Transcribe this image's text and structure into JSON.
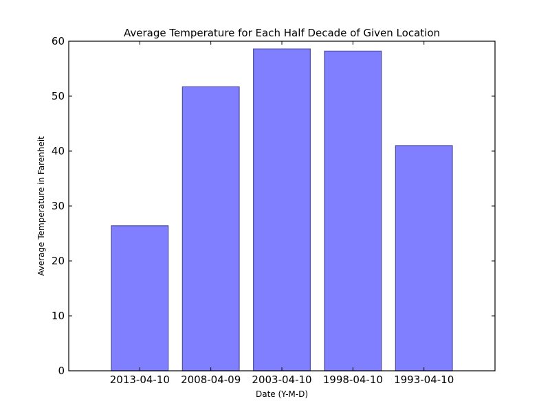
{
  "chart_data": {
    "type": "bar",
    "title": "Average Temperature for Each Half Decade of Given Location",
    "xlabel": "Date (Y-M-D)",
    "ylabel": "Average Temperature in Farenheit",
    "categories": [
      "2013-04-10",
      "2008-04-09",
      "2003-04-10",
      "1998-04-10",
      "1993-04-10"
    ],
    "values": [
      26.4,
      51.7,
      58.6,
      58.2,
      41.0
    ],
    "ylim": [
      0,
      60
    ],
    "yticks": [
      0,
      10,
      20,
      30,
      40,
      50,
      60
    ],
    "grid": false,
    "colors": {
      "bar_fill": "#7f7fff",
      "bar_edge": "#4c4c9a"
    }
  }
}
